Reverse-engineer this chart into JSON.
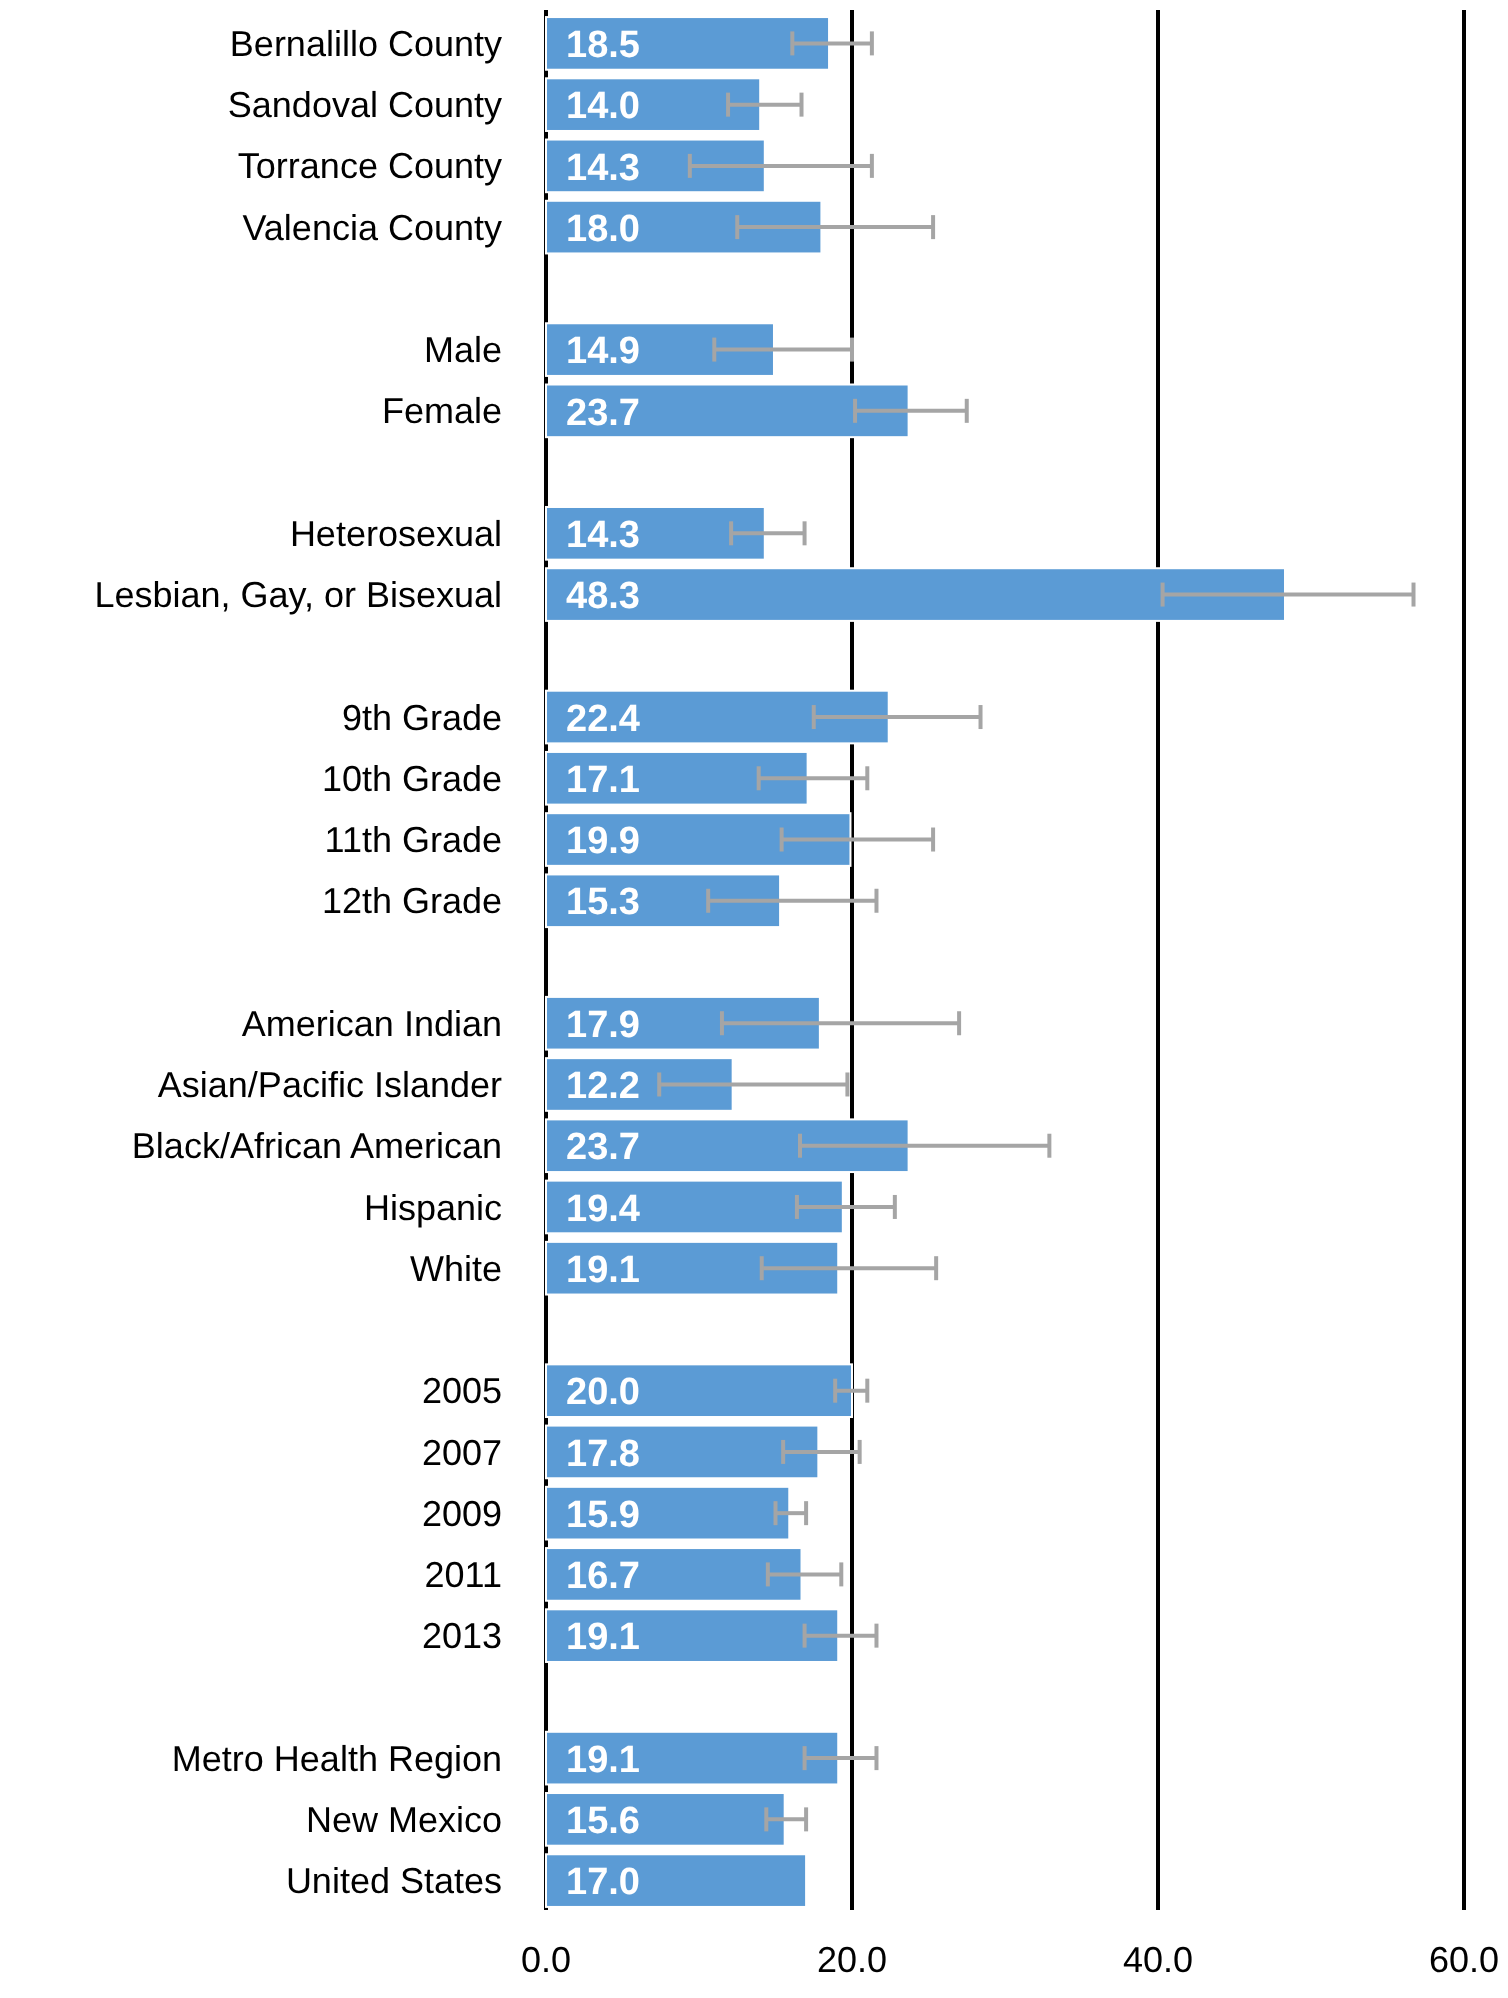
{
  "chart_data": {
    "type": "bar",
    "orientation": "horizontal",
    "categories": [
      "Bernalillo County",
      "Sandoval County",
      "Torrance County",
      "Valencia County",
      null,
      "Male",
      "Female",
      null,
      "Heterosexual",
      "Lesbian, Gay, or Bisexual",
      null,
      "9th Grade",
      "10th Grade",
      "11th Grade",
      "12th Grade",
      null,
      "American Indian",
      "Asian/Pacific Islander",
      "Black/African American",
      "Hispanic",
      "White",
      null,
      "2005",
      "2007",
      "2009",
      "2011",
      "2013",
      null,
      "Metro Health Region",
      "New Mexico",
      "United States"
    ],
    "values": [
      18.5,
      14.0,
      14.3,
      18.0,
      null,
      14.9,
      23.7,
      null,
      14.3,
      48.3,
      null,
      22.4,
      17.1,
      19.9,
      15.3,
      null,
      17.9,
      12.2,
      23.7,
      19.4,
      19.1,
      null,
      20.0,
      17.8,
      15.9,
      16.7,
      19.1,
      null,
      19.1,
      15.6,
      17.0
    ],
    "value_labels": [
      "18.5",
      "14.0",
      "14.3",
      "18.0",
      null,
      "14.9",
      "23.7",
      null,
      "14.3",
      "48.3",
      null,
      "22.4",
      "17.1",
      "19.9",
      "15.3",
      null,
      "17.9",
      "12.2",
      "23.7",
      "19.4",
      "19.1",
      null,
      "20.0",
      "17.8",
      "15.9",
      "16.7",
      "19.1",
      null,
      "19.1",
      "15.6",
      "17.0"
    ],
    "errors": [
      [
        16.1,
        21.3
      ],
      [
        11.9,
        16.7
      ],
      [
        9.4,
        21.3
      ],
      [
        12.5,
        25.3
      ],
      null,
      [
        11.0,
        20.0
      ],
      [
        20.2,
        27.5
      ],
      null,
      [
        12.1,
        16.9
      ],
      [
        40.3,
        56.7
      ],
      null,
      [
        17.5,
        28.4
      ],
      [
        13.9,
        21.0
      ],
      [
        15.4,
        25.3
      ],
      [
        10.6,
        21.6
      ],
      null,
      [
        11.5,
        27.0
      ],
      [
        7.4,
        19.7
      ],
      [
        16.6,
        32.9
      ],
      [
        16.4,
        22.8
      ],
      [
        14.1,
        25.5
      ],
      null,
      [
        18.9,
        21.0
      ],
      [
        15.5,
        20.5
      ],
      [
        15.0,
        17.0
      ],
      [
        14.5,
        19.3
      ],
      [
        16.9,
        21.6
      ],
      null,
      [
        16.9,
        21.6
      ],
      [
        14.4,
        17.0
      ],
      null
    ],
    "color": "#5b9bd5",
    "xlim": [
      0,
      60
    ],
    "xticks": [
      {
        "value": 0,
        "label": "0.0"
      },
      {
        "value": 20,
        "label": "20.0"
      },
      {
        "value": 40,
        "label": "40.0"
      },
      {
        "value": 60,
        "label": "60.0"
      }
    ],
    "grid": "x"
  }
}
